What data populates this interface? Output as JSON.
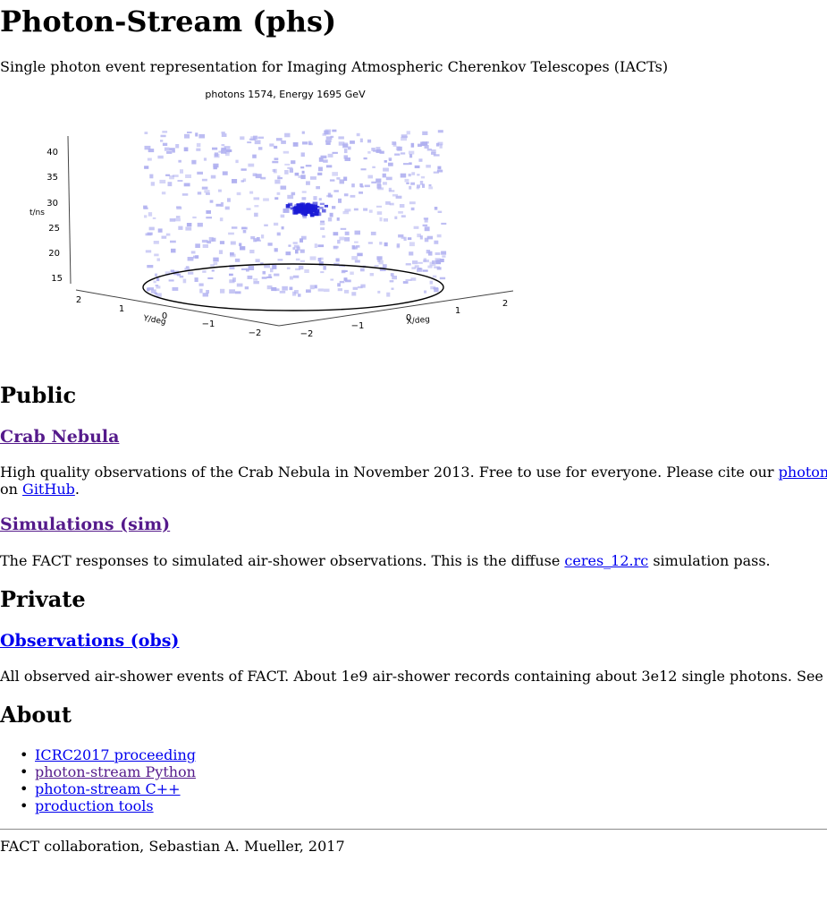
{
  "page": {
    "title": "Photon-Stream (phs)",
    "subtitle": "Single photon event representation for Imaging Atmospheric Cherenkov Telescopes (IACTs)"
  },
  "figure": {
    "title": "photons 1574, Energy 1695 GeV",
    "t_axis": {
      "label": "t/ns",
      "ticks": [
        "40",
        "35",
        "30",
        "25",
        "20",
        "15"
      ]
    },
    "y_axis": {
      "label": "Y/deg",
      "ticks": [
        "2",
        "1",
        "0",
        "−1",
        "−2"
      ]
    },
    "x_axis": {
      "label": "X/deg",
      "ticks": [
        "−2",
        "−1",
        "0",
        "1",
        "2"
      ]
    },
    "colors": {
      "photons": "#b0b0f0",
      "dense_photons": "#1a1ad6",
      "axes": "#444444"
    }
  },
  "sections": {
    "public": {
      "heading": "Public",
      "crab": {
        "link": "Crab Nebula",
        "text_before": "High quality observations of the Crab Nebula in November 2013. Free to use for everyone. Please cite our ",
        "cite_link": "photon-s",
        "line2_before": "on ",
        "github_link": "GitHub",
        "line2_after": "."
      },
      "sim": {
        "link": "Simulations (sim)",
        "text_before": "The FACT responses to simulated air-shower observations. This is the diffuse ",
        "ceres_link": "ceres_12.rc",
        "text_after": " simulation pass."
      }
    },
    "private": {
      "heading": "Private",
      "obs": {
        "link": "Observations (obs)",
        "text_before": "All observed air-shower events of FACT. About 1e9 air-shower records containing about 3e12 single photons. See ",
        "see_link": "./"
      }
    },
    "about": {
      "heading": "About",
      "links": [
        "ICRC2017 proceeding",
        "photon-stream Python",
        "photon-stream C++",
        "production tools"
      ]
    }
  },
  "footer": {
    "text": "FACT collaboration, Sebastian A. Mueller, 2017"
  }
}
